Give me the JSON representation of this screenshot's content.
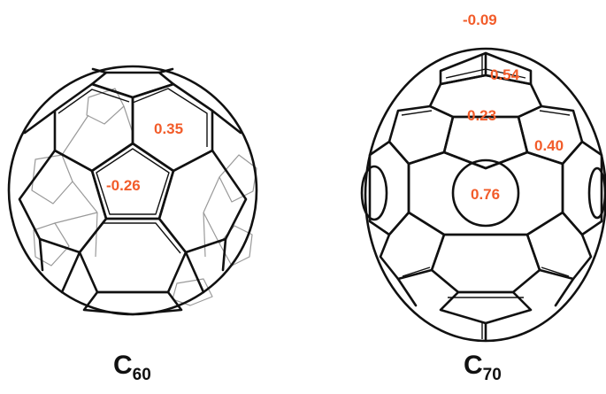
{
  "molecules": [
    {
      "formula_base": "C",
      "formula_sub": "60",
      "labels": [
        "0.35",
        "-0.26"
      ]
    },
    {
      "formula_base": "C",
      "formula_sub": "70",
      "labels": [
        "-0.09",
        "0.54",
        "0.23",
        "0.40",
        "0.76"
      ]
    }
  ],
  "colors": {
    "label": "#f25c2a",
    "line": "#111111",
    "hidden_edges": "#9a9a9a"
  }
}
